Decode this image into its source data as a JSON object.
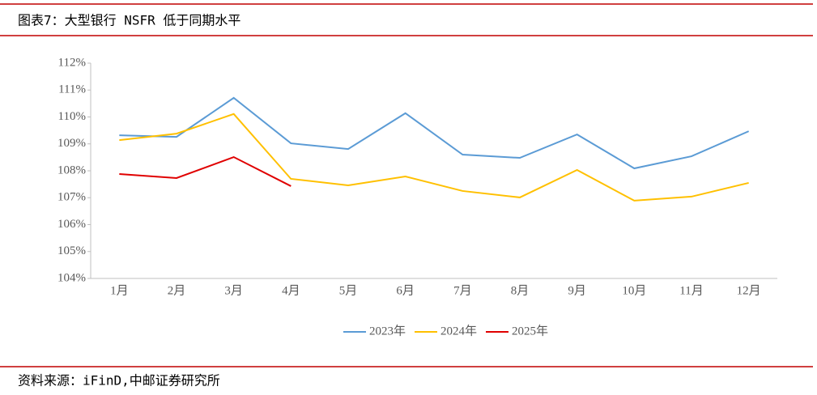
{
  "chart_data": {
    "type": "line",
    "title": "图表7：大型银行 NSFR 低于同期水平",
    "categories": [
      "1月",
      "2月",
      "3月",
      "4月",
      "5月",
      "6月",
      "7月",
      "8月",
      "9月",
      "10月",
      "11月",
      "12月"
    ],
    "series": [
      {
        "name": "2023年",
        "color": "#5b9bd5",
        "values": [
          109.32,
          109.26,
          110.71,
          109.02,
          108.81,
          110.14,
          108.6,
          108.48,
          109.35,
          108.09,
          108.54,
          109.47
        ]
      },
      {
        "name": "2024年",
        "color": "#ffc000",
        "values": [
          109.14,
          109.38,
          110.11,
          107.7,
          107.46,
          107.79,
          107.25,
          107.01,
          108.03,
          106.89,
          107.04,
          107.55
        ]
      },
      {
        "name": "2025年",
        "color": "#e00000",
        "values": [
          107.88,
          107.73,
          108.51,
          107.43,
          null,
          null,
          null,
          null,
          null,
          null,
          null,
          null
        ]
      }
    ],
    "ylim": [
      104,
      112
    ],
    "yticks": [
      {
        "value": 104,
        "label": "104%"
      },
      {
        "value": 105,
        "label": "105%"
      },
      {
        "value": 106,
        "label": "106%"
      },
      {
        "value": 107,
        "label": "107%"
      },
      {
        "value": 108,
        "label": "108%"
      },
      {
        "value": 109,
        "label": "109%"
      },
      {
        "value": 110,
        "label": "110%"
      },
      {
        "value": 111,
        "label": "111%"
      },
      {
        "value": 112,
        "label": "112%"
      }
    ],
    "grid": false,
    "legend": "bottom"
  },
  "source": "资料来源：iFinD,中邮证券研究所"
}
